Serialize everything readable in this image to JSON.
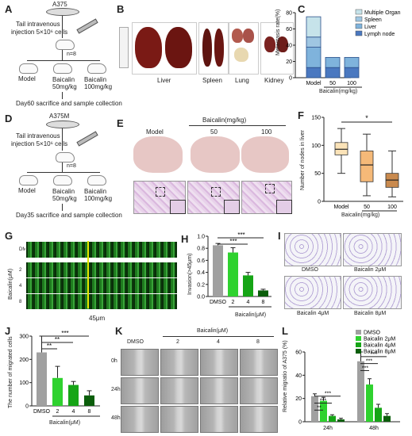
{
  "panels": {
    "A": {
      "letter": "A",
      "cell_line": "A375",
      "injection_line1": "Tail intravenous",
      "injection_line2": "injection 5×10⁶ cells",
      "n": "n=8",
      "groups": [
        "Model",
        "Baicalin\n50mg/kg",
        "Baicalin\n100mg/kg"
      ],
      "endpoint": "Day60 sacrifice and sample collection"
    },
    "B": {
      "letter": "B",
      "organs": [
        "Liver",
        "Spleen",
        "Lung",
        "Kidney"
      ]
    },
    "C": {
      "letter": "C",
      "legend": [
        "Multiple Organ",
        "Spleen",
        "Liver",
        "Lymph node"
      ],
      "legend_colors": [
        "#c6e3ea",
        "#9fc6e2",
        "#7fb3dc",
        "#4a78c0"
      ],
      "ylabel": "Metastasis rate(%)",
      "yticks": [
        "0",
        "20",
        "40",
        "60",
        "80"
      ],
      "xticks": [
        "Model",
        "50",
        "100"
      ],
      "xlabel": "Baicalin(mg/kg)"
    },
    "D": {
      "letter": "D",
      "cell_line": "A375M",
      "injection_line1": "Tail intravenous",
      "injection_line2": "injection 5×10⁶ cells",
      "n": "n=8",
      "groups": [
        "Model",
        "Baicalin\n50mg/kg",
        "Baicalin\n100mg/kg"
      ],
      "endpoint": "Day35 sacrifice and sample collection"
    },
    "E": {
      "letter": "E",
      "baicalin_header": "Baicalin(mg/kg)",
      "columns": [
        "Model",
        "50",
        "100"
      ]
    },
    "F": {
      "letter": "F",
      "ylabel": "Number of nodes in liver",
      "yticks": [
        "0",
        "50",
        "100",
        "150"
      ],
      "xticks": [
        "Model",
        "50",
        "100"
      ],
      "xlabel": "Baicalin(mg/kg)",
      "sig": "*"
    },
    "G": {
      "letter": "G",
      "rows": [
        "DMSO",
        "2",
        "4",
        "8"
      ],
      "side_label": "Baicalin(μM)",
      "scale": "45μm"
    },
    "H": {
      "letter": "H",
      "ylabel": "Invasion(>45μm)",
      "yticks": [
        "0.0",
        "0.2",
        "0.4",
        "0.6",
        "0.8",
        "1.0"
      ],
      "xticks": [
        "DMSO",
        "2",
        "4",
        "8"
      ],
      "xlabel": "Baicalin(μM)",
      "sig": [
        "***",
        "***"
      ]
    },
    "I": {
      "letter": "I",
      "labels": [
        "DMSO",
        "Baicalin 2μM",
        "Baicalin 4μM",
        "Baicalin 8μM"
      ]
    },
    "J": {
      "letter": "J",
      "ylabel": "The number of migrated cells",
      "yticks": [
        "0",
        "100",
        "200",
        "300"
      ],
      "xticks": [
        "DMSO",
        "2",
        "4",
        "8"
      ],
      "xlabel": "Baicalin(μM)",
      "sig": [
        "**",
        "**",
        "***"
      ]
    },
    "K": {
      "letter": "K",
      "header": "Baicalin(μM)",
      "columns": [
        "DMSO",
        "2",
        "4",
        "8"
      ],
      "rows": [
        "0h",
        "24h",
        "48h"
      ]
    },
    "L": {
      "letter": "L",
      "legend": [
        "DMSO",
        "Baicalin 2μM",
        "Baicalin 4μM",
        "Baicalin 8μM"
      ],
      "ylabel": "Relative migratio of A375 (%)",
      "yticks": [
        "0",
        "20",
        "40",
        "60"
      ],
      "xticks": [
        "24h",
        "48h"
      ],
      "sig": [
        "**",
        "***",
        "***",
        "***",
        "***",
        "***"
      ]
    }
  },
  "colors": {
    "green_series": [
      "#a0a0a0",
      "#2fd22f",
      "#16a516",
      "#0b5e0b"
    ],
    "box_colors": [
      "#fbe3b8",
      "#f5b978",
      "#c98a4e"
    ]
  },
  "chart_data": [
    {
      "panel": "C",
      "type": "bar",
      "stacked": true,
      "categories": [
        "Model",
        "50",
        "100"
      ],
      "series": [
        {
          "name": "Lymph node",
          "values": [
            12.5,
            12.5,
            12.5
          ]
        },
        {
          "name": "Liver",
          "values": [
            25,
            12.5,
            12.5
          ]
        },
        {
          "name": "Spleen",
          "values": [
            12.5,
            0,
            0
          ]
        },
        {
          "name": "Multiple Organ",
          "values": [
            25,
            0,
            0
          ]
        }
      ],
      "ylabel": "Metastasis rate(%)",
      "xlabel": "Baicalin(mg/kg)",
      "ylim": [
        0,
        80
      ]
    },
    {
      "panel": "F",
      "type": "box",
      "categories": [
        "Model",
        "50",
        "100"
      ],
      "boxes": [
        {
          "min": 50,
          "q1": 83,
          "median": 93,
          "q3": 105,
          "max": 130
        },
        {
          "min": 10,
          "q1": 35,
          "median": 65,
          "q3": 90,
          "max": 120
        },
        {
          "min": 8,
          "q1": 25,
          "median": 38,
          "q3": 50,
          "max": 90
        }
      ],
      "ylabel": "Number of nodes in liver",
      "xlabel": "Baicalin(mg/kg)",
      "ylim": [
        0,
        150
      ]
    },
    {
      "panel": "H",
      "type": "bar",
      "categories": [
        "DMSO",
        "2",
        "4",
        "8"
      ],
      "values": [
        0.85,
        0.73,
        0.35,
        0.1
      ],
      "errors": [
        0.03,
        0.08,
        0.05,
        0.02
      ],
      "ylabel": "Invasion(>45μm)",
      "xlabel": "Baicalin(μM)",
      "ylim": [
        0,
        1.0
      ]
    },
    {
      "panel": "J",
      "type": "bar",
      "categories": [
        "DMSO",
        "2",
        "4",
        "8"
      ],
      "values": [
        230,
        120,
        90,
        45
      ],
      "errors": [
        70,
        50,
        15,
        20
      ],
      "ylabel": "The number of migrated cells",
      "xlabel": "Baicalin(μM)",
      "ylim": [
        0,
        300
      ]
    },
    {
      "panel": "L",
      "type": "bar",
      "categories": [
        "24h",
        "48h"
      ],
      "series": [
        {
          "name": "DMSO",
          "values": [
            22,
            52
          ],
          "errors": [
            2,
            8
          ]
        },
        {
          "name": "Baicalin 2μM",
          "values": [
            18,
            32
          ],
          "errors": [
            3,
            5
          ]
        },
        {
          "name": "Baicalin 4μM",
          "values": [
            5,
            12
          ],
          "errors": [
            1,
            3
          ]
        },
        {
          "name": "Baicalin 8μM",
          "values": [
            2,
            5
          ],
          "errors": [
            1,
            2
          ]
        }
      ],
      "ylabel": "Relative migratio of A375 (%)",
      "ylim": [
        0,
        60
      ]
    }
  ]
}
